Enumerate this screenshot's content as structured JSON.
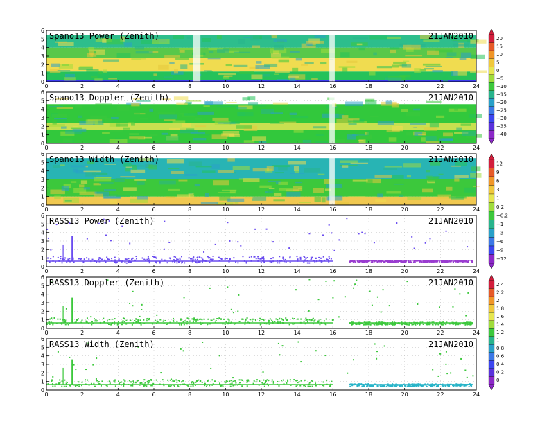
{
  "figure": {
    "date": "21JAN2010"
  },
  "chart_data": [
    {
      "type": "heatmap",
      "title": "Spano13 Power (Zenith)",
      "date": "21JAN2010",
      "xlim": [
        0,
        24
      ],
      "ylim": [
        0,
        6
      ],
      "xticks": [
        "0",
        "2",
        "4",
        "6",
        "8",
        "10",
        "12",
        "14",
        "16",
        "18",
        "20",
        "22",
        "24"
      ],
      "yticks": [
        "0",
        "1",
        "2",
        "3",
        "4",
        "5",
        "6"
      ],
      "colorbar_group": "power",
      "layers": [
        {
          "y": [
            0.0,
            0.2
          ],
          "color": "#3c3cf0"
        },
        {
          "y": [
            0.2,
            1.2
          ],
          "color": "#25c25a"
        },
        {
          "y": [
            1.2,
            2.8
          ],
          "color": "#f0dc50"
        },
        {
          "y": [
            2.8,
            4.0
          ],
          "color": "#58c84a"
        },
        {
          "y": [
            4.0,
            5.5
          ],
          "color": "#2dbe8c"
        }
      ],
      "gaps": [
        [
          8.2,
          8.6
        ],
        [
          15.8,
          16.1
        ]
      ]
    },
    {
      "type": "heatmap",
      "title": "Spano13 Doppler (Zenith)",
      "date": "21JAN2010",
      "xlim": [
        0,
        24
      ],
      "ylim": [
        0,
        6
      ],
      "xticks": [
        "0",
        "2",
        "4",
        "6",
        "8",
        "10",
        "12",
        "14",
        "16",
        "18",
        "20",
        "22",
        "24"
      ],
      "yticks": [
        "0",
        "1",
        "2",
        "3",
        "4",
        "5",
        "6"
      ],
      "colorbar_group": "power",
      "layers": [
        {
          "y": [
            0.0,
            4.6
          ],
          "color": "#32c83c"
        },
        {
          "y": [
            1.6,
            2.4
          ],
          "color": "#c8e050"
        }
      ],
      "gaps": [
        [
          15.8,
          16.1
        ]
      ]
    },
    {
      "type": "heatmap",
      "title": "Spano13 Width (Zenith)",
      "date": "21JAN2010",
      "xlim": [
        0,
        24
      ],
      "ylim": [
        0,
        6
      ],
      "xticks": [
        "0",
        "2",
        "4",
        "6",
        "8",
        "10",
        "12",
        "14",
        "16",
        "18",
        "20",
        "22",
        "24"
      ],
      "yticks": [
        "0",
        "1",
        "2",
        "3",
        "4",
        "5",
        "6"
      ],
      "colorbar_group": "width",
      "layers": [
        {
          "y": [
            0.0,
            1.0
          ],
          "color": "#f0c850"
        },
        {
          "y": [
            1.0,
            3.0
          ],
          "color": "#3cc83c"
        },
        {
          "y": [
            3.0,
            5.6
          ],
          "color": "#28b4b4"
        }
      ],
      "gaps": [
        [
          15.8,
          16.1
        ]
      ]
    },
    {
      "type": "scatter",
      "title": "RASS13 Power (Zenith)",
      "date": "21JAN2010",
      "xlim": [
        0,
        24
      ],
      "ylim": [
        0,
        6
      ],
      "xticks": [
        "0",
        "2",
        "4",
        "6",
        "8",
        "10",
        "12",
        "14",
        "16",
        "18",
        "20",
        "22",
        "24"
      ],
      "yticks": [
        "0",
        "1",
        "2",
        "3",
        "4",
        "5",
        "6"
      ],
      "colorbar_group": "width",
      "bands": [
        {
          "x": [
            0,
            16
          ],
          "y": [
            0.5,
            1.3
          ],
          "color": "#6a4cf0"
        },
        {
          "x": [
            16.9,
            23.8
          ],
          "y": [
            0.6,
            0.8
          ],
          "color": "#9a3cd0"
        }
      ]
    },
    {
      "type": "scatter",
      "title": "RASS13 Doppler (Zenith)",
      "date": "21JAN2010",
      "xlim": [
        0,
        24
      ],
      "ylim": [
        0,
        6
      ],
      "xticks": [
        "0",
        "2",
        "4",
        "6",
        "8",
        "10",
        "12",
        "14",
        "16",
        "18",
        "20",
        "22",
        "24"
      ],
      "yticks": [
        "0",
        "1",
        "2",
        "3",
        "4",
        "5",
        "6"
      ],
      "colorbar_group": "rass",
      "bands": [
        {
          "x": [
            0,
            16
          ],
          "y": [
            0.5,
            1.3
          ],
          "color": "#3cc83c"
        },
        {
          "x": [
            16.9,
            23.8
          ],
          "y": [
            0.5,
            0.8
          ],
          "color": "#3cc83c"
        }
      ]
    },
    {
      "type": "scatter",
      "title": "RASS13 Width (Zenith)",
      "date": "21JAN2010",
      "xlim": [
        0,
        24
      ],
      "ylim": [
        0,
        6
      ],
      "xticks": [
        "0",
        "2",
        "4",
        "6",
        "8",
        "10",
        "12",
        "14",
        "16",
        "18",
        "20",
        "22",
        "24"
      ],
      "yticks": [
        "0",
        "1",
        "2",
        "3",
        "4",
        "5",
        "6"
      ],
      "colorbar_group": "rass",
      "bands": [
        {
          "x": [
            0,
            16
          ],
          "y": [
            0.5,
            1.3
          ],
          "color": "#3cc83c"
        },
        {
          "x": [
            16.9,
            23.8
          ],
          "y": [
            0.5,
            0.8
          ],
          "color": "#28b4c8"
        }
      ]
    }
  ],
  "colorbars": [
    {
      "id": "power",
      "labels": [
        "20",
        "15",
        "10",
        "5",
        "0",
        "−5",
        "−10",
        "−15",
        "−20",
        "−25",
        "−30",
        "−35",
        "−40"
      ],
      "colors": [
        "#d21e3c",
        "#e65a28",
        "#f09628",
        "#f0c83c",
        "#e6e650",
        "#a0dc3c",
        "#3cc83c",
        "#28b48c",
        "#28a0c8",
        "#3c78e6",
        "#3c46f0",
        "#5a32dc",
        "#8c28c8"
      ]
    },
    {
      "id": "width",
      "labels": [
        "12",
        "9",
        "6",
        "3",
        "1",
        "0.2",
        "−0.2",
        "−1",
        "−3",
        "−6",
        "−9",
        "−12"
      ],
      "colors": [
        "#d21e3c",
        "#e65a28",
        "#f09628",
        "#f0c83c",
        "#e6e650",
        "#a0dc3c",
        "#3cc83c",
        "#28b48c",
        "#28a0c8",
        "#3c78e6",
        "#3c46f0",
        "#8c28c8"
      ]
    },
    {
      "id": "rass",
      "labels": [
        "2.4",
        "2.2",
        "2",
        "1.8",
        "1.6",
        "1.4",
        "1.2",
        "1",
        "0.8",
        "0.6",
        "0.4",
        "0.2",
        "0"
      ],
      "colors": [
        "#d21e3c",
        "#e65a28",
        "#f09628",
        "#f0c83c",
        "#e6e650",
        "#a0dc3c",
        "#3cc83c",
        "#28b48c",
        "#28a0c8",
        "#3c78e6",
        "#3c46f0",
        "#5a32dc",
        "#8c28c8"
      ]
    }
  ]
}
